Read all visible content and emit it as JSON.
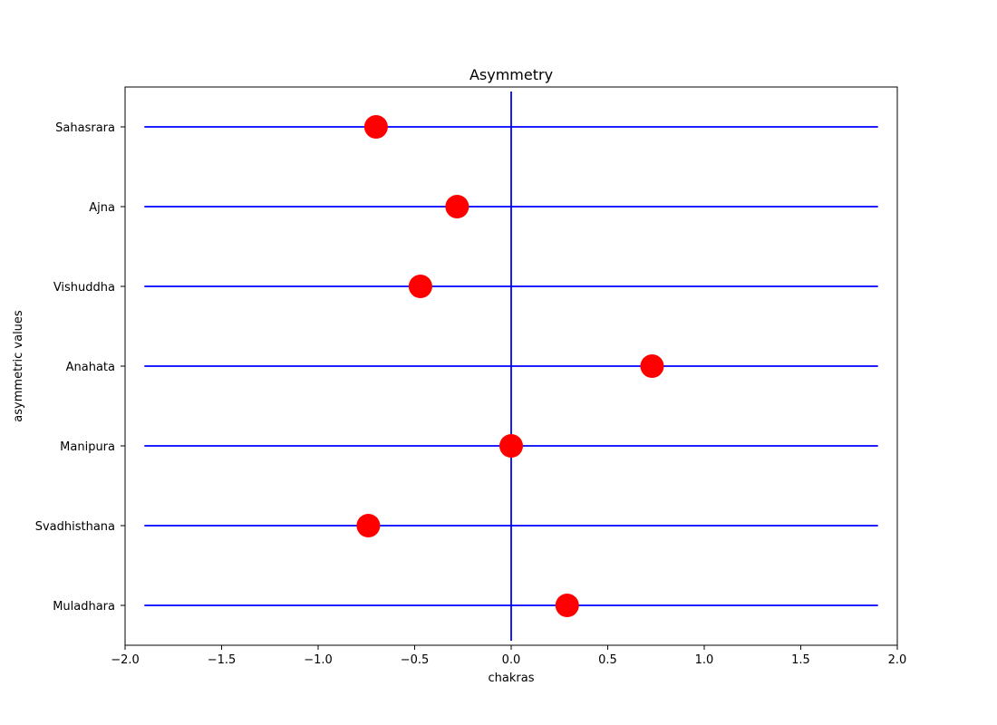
{
  "chart_data": {
    "type": "scatter",
    "title": "Asymmetry",
    "xlabel": "chakras",
    "ylabel": "asymmetric values",
    "xlim": [
      -2.0,
      2.0
    ],
    "xticks": [
      -2.0,
      -1.5,
      -1.0,
      -0.5,
      0.0,
      0.5,
      1.0,
      1.5,
      2.0
    ],
    "xtick_labels": [
      "−2.0",
      "−1.5",
      "−1.0",
      "−0.5",
      "0.0",
      "0.5",
      "1.0",
      "1.5",
      "2.0"
    ],
    "categories": [
      "Muladhara",
      "Svadhisthana",
      "Manipura",
      "Anahata",
      "Vishuddha",
      "Ajna",
      "Sahasrara"
    ],
    "values": [
      0.29,
      -0.74,
      0.0,
      0.73,
      -0.47,
      -0.28,
      -0.7
    ],
    "hline_span": [
      -1.9,
      1.9
    ],
    "vline_x": 0.0,
    "grid": false,
    "colors": {
      "lines": "#0000ff",
      "markers": "#ff0000",
      "axes": "#000000"
    }
  }
}
